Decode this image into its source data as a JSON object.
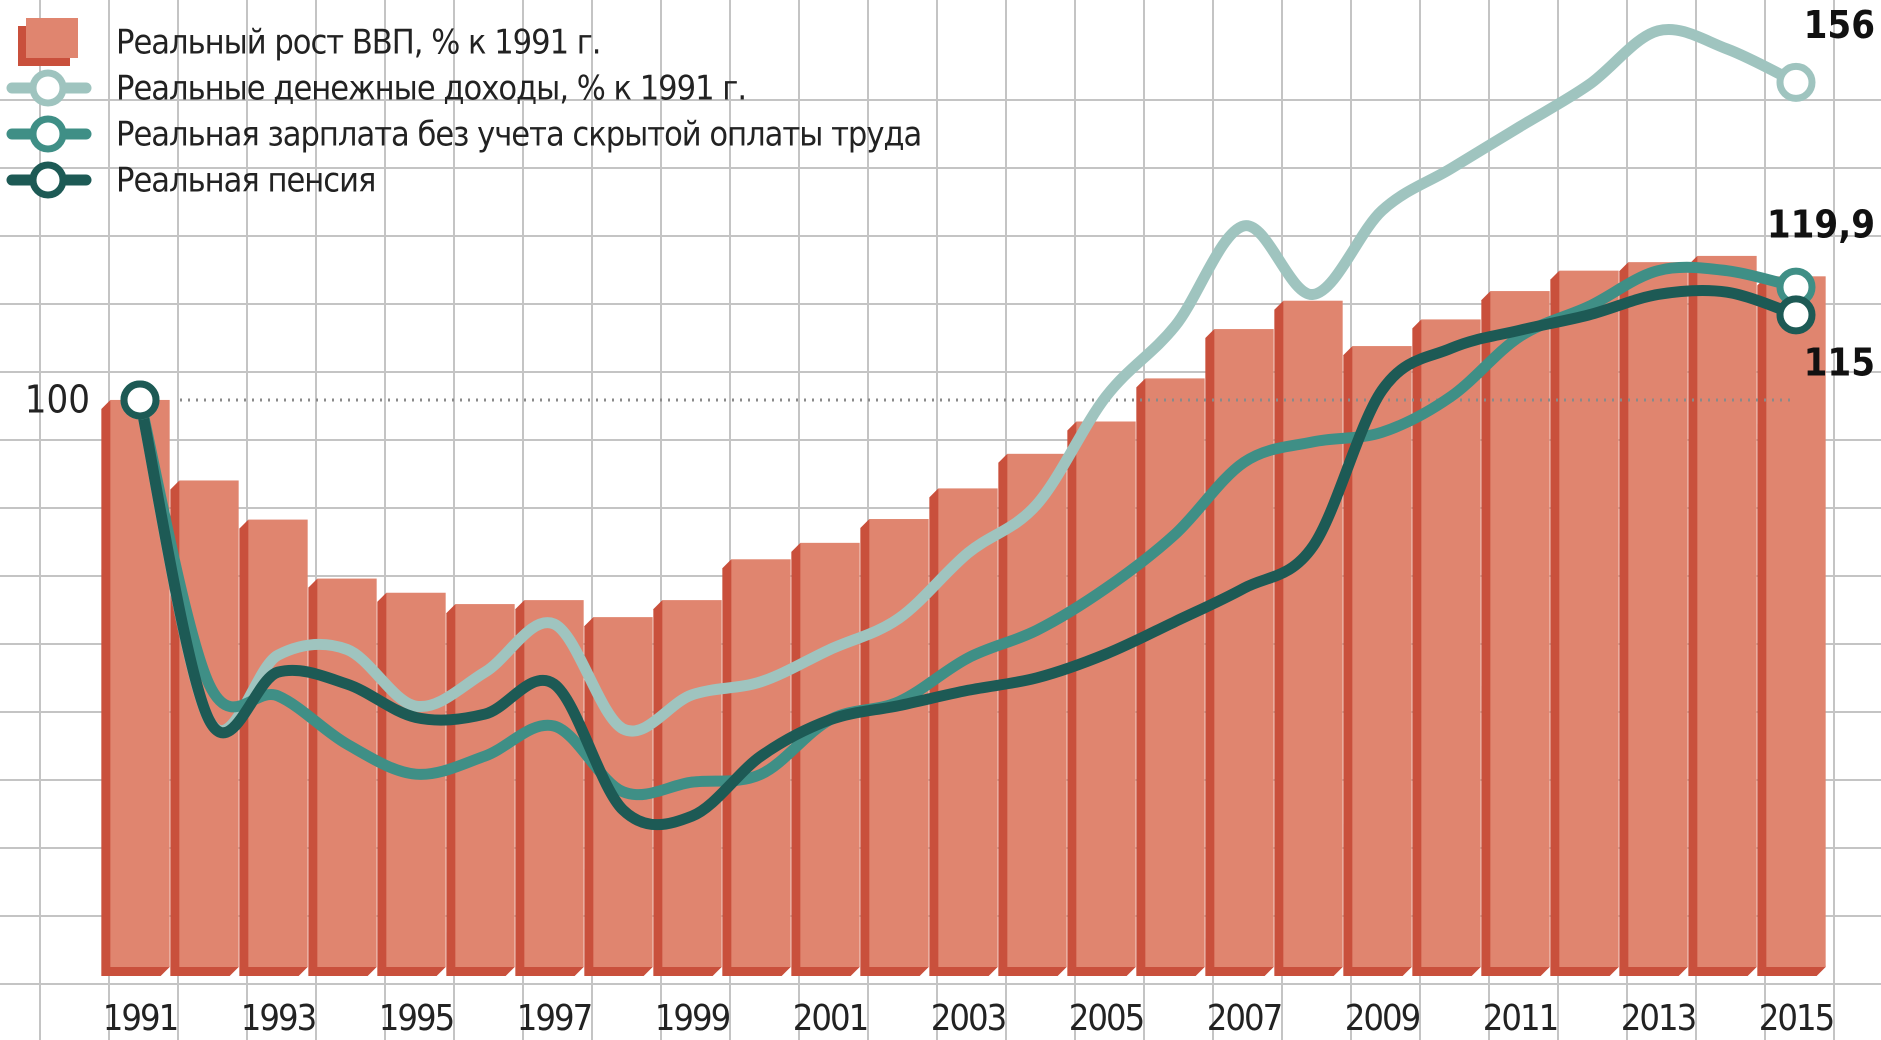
{
  "chart_data": {
    "type": "bar",
    "x": [
      1991,
      1992,
      1993,
      1994,
      1995,
      1996,
      1997,
      1998,
      1999,
      2000,
      2001,
      2002,
      2003,
      2004,
      2005,
      2006,
      2007,
      2008,
      2009,
      2010,
      2011,
      2012,
      2013,
      2014,
      2015
    ],
    "xlim": [
      1989,
      2016
    ],
    "xticks": [
      1991,
      1993,
      1995,
      1997,
      1999,
      2001,
      2003,
      2005,
      2007,
      2009,
      2011,
      2013,
      2015
    ],
    "ylim": [
      0,
      170
    ],
    "yticks": [
      100
    ],
    "legend": "top-left",
    "series": [
      {
        "name": "Реальный рост ВВП, % к 1991 г.",
        "type": "bar",
        "color": "#e0856f",
        "values": [
          100,
          85.8,
          78.9,
          68.5,
          66,
          64,
          64.7,
          61.7,
          64.7,
          71.9,
          74.8,
          79,
          84.4,
          90.5,
          96.2,
          103.8,
          112.5,
          117.5,
          109.5,
          114.2,
          119.2,
          122.8,
          124.3,
          125.4,
          121.8
        ]
      },
      {
        "name": "Реальные денежные доходы, % к 1991 г.",
        "type": "line",
        "color": "#9fc4bf",
        "values": [
          100,
          43.6,
          55,
          56,
          46,
          52,
          60.5,
          42,
          48,
          50.3,
          56,
          61.5,
          73,
          81.6,
          100.6,
          113,
          130.7,
          118.6,
          133.4,
          140.8,
          148.2,
          155.6,
          165.1,
          161.9,
          156
        ]
      },
      {
        "name": "Реальная зарплата без учета скрытой оплаты труда",
        "type": "line",
        "color": "#3f8f86",
        "values": [
          100,
          49.9,
          47.8,
          39.3,
          34,
          37.2,
          42.5,
          30.9,
          32.6,
          34,
          43.6,
          46.8,
          54.5,
          59.4,
          66.8,
          76.3,
          89,
          92.6,
          94.3,
          100.6,
          111.2,
          116.5,
          122.8,
          122.8,
          119.9
        ],
        "value_labels": [
          null,
          null,
          null,
          null,
          null,
          null,
          null,
          null,
          null,
          null,
          null,
          null,
          null,
          null,
          null,
          null,
          null,
          null,
          null,
          null,
          null,
          null,
          null,
          null,
          "119,9"
        ]
      },
      {
        "name": "Реальная пенсия",
        "type": "line",
        "color": "#1d5a55",
        "values": [
          100,
          43.6,
          52,
          49.9,
          44,
          44.6,
          49.9,
          27.7,
          26.6,
          37.2,
          43.6,
          46.1,
          48.8,
          51,
          55.2,
          60.9,
          66.8,
          74.2,
          101.7,
          109.1,
          112.3,
          115,
          118.6,
          119,
          115
        ]
      }
    ]
  }
}
